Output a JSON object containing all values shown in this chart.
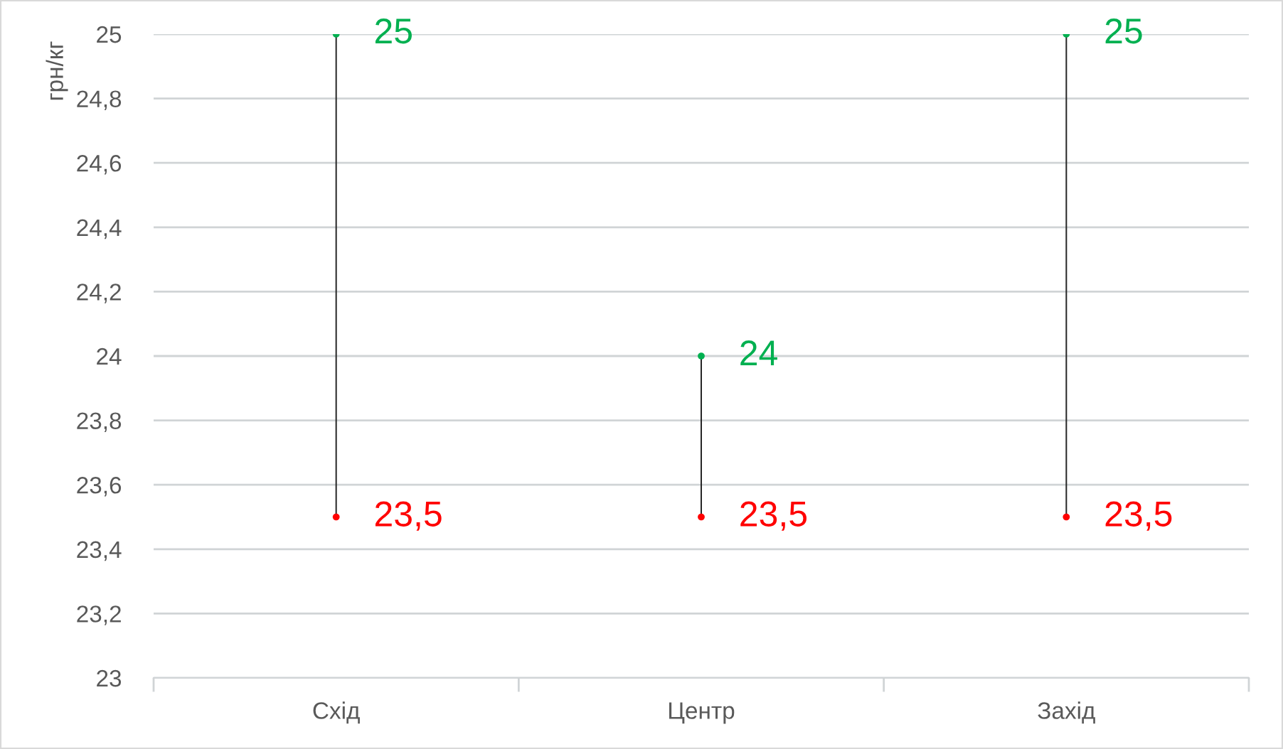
{
  "chart_data": {
    "type": "bar",
    "ylabel": "грн/кг",
    "categories": [
      "Схід",
      "Центр",
      "Захід"
    ],
    "series": [
      {
        "color": "#262626",
        "base": [
          23.5,
          23.5,
          23.5
        ],
        "values": [
          1.5,
          0.5,
          1.5
        ]
      },
      {
        "type": "scatter",
        "color": "#00b050",
        "values": [
          25,
          24,
          25
        ],
        "value_labels": [
          "25",
          "24",
          "25"
        ]
      },
      {
        "type": "scatter",
        "color": "#ff0000",
        "values": [
          23.5,
          23.5,
          23.5
        ],
        "value_labels": [
          "23,5",
          "23,5",
          "23,5"
        ]
      }
    ],
    "marker": "circle",
    "ylim": [
      23,
      25
    ],
    "yticks": [
      23,
      {
        "value": 23.2,
        "label": "23,2"
      },
      {
        "value": 23.4,
        "label": "23,4"
      },
      {
        "value": 23.6,
        "label": "23,6"
      },
      {
        "value": 23.8,
        "label": "23,8"
      },
      24,
      {
        "value": 24.2,
        "label": "24,2"
      },
      {
        "value": 24.4,
        "label": "24,4"
      },
      {
        "value": 24.6,
        "label": "24,6"
      },
      {
        "value": 24.8,
        "label": "24,8"
      },
      25
    ],
    "grid": "y"
  }
}
